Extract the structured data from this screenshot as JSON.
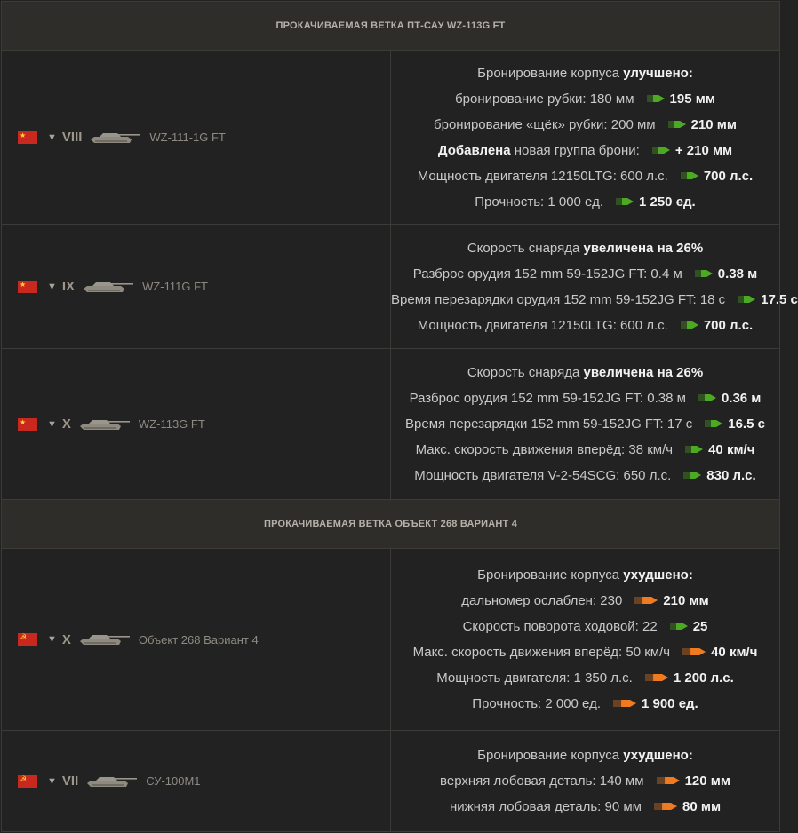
{
  "colors": {
    "background": "#222222",
    "header_background": "#2f2d2a",
    "border": "#3d3b38",
    "text": "#c9c9c9",
    "value_text": "#f2f2f2",
    "buff": "#4caa22",
    "nerf": "#f07a20"
  },
  "sections": [
    {
      "title": "ПРОКАЧИВАЕМАЯ ВЕТКА ПТ-САУ WZ-113G FT",
      "rows": [
        {
          "tier": "VIII",
          "flag": "china-flag-icon",
          "tank_name": "WZ-111-1G FT",
          "lines": [
            {
              "text": "Бронирование корпуса ",
              "bold": "улучшено:"
            },
            {
              "text": "бронирование рубки: 180 мм",
              "dir": "up",
              "new": "195 мм"
            },
            {
              "text": "бронирование «щёк» рубки: 200 мм",
              "dir": "up",
              "new": "210 мм"
            },
            {
              "lead": "Добавлена",
              "text": " новая группа брони:",
              "dir": "up",
              "new": "+ 210 мм"
            },
            {
              "text": "Мощность двигателя 12150LTG: 600 л.с.",
              "dir": "up",
              "new": "700 л.с."
            },
            {
              "text": "Прочность: 1 000 ед.",
              "dir": "up",
              "new": "1 250 ед."
            }
          ]
        },
        {
          "tier": "IX",
          "flag": "china-flag-icon",
          "tank_name": "WZ-111G FT",
          "lines": [
            {
              "text": "Скорость снаряда ",
              "bold": "увеличена на 26%"
            },
            {
              "text": "Разброс орудия 152 mm 59-152JG FT: 0.4 м",
              "dir": "up",
              "new": "0.38 м"
            },
            {
              "text": "Время перезарядки орудия 152 mm 59-152JG FT: 18 с",
              "dir": "up",
              "new": "17.5 с"
            },
            {
              "text": "Мощность двигателя 12150LTG: 600 л.с.",
              "dir": "up",
              "new": "700 л.с."
            }
          ]
        },
        {
          "tier": "X",
          "flag": "china-flag-icon",
          "tank_name": "WZ-113G FT",
          "lines": [
            {
              "text": "Скорость снаряда ",
              "bold": "увеличена на 26%"
            },
            {
              "text": "Разброс орудия 152 mm 59-152JG FT: 0.38 м",
              "dir": "up",
              "new": "0.36 м"
            },
            {
              "text": "Время перезарядки 152 mm 59-152JG FT: 17 с",
              "dir": "up",
              "new": "16.5 с"
            },
            {
              "text": "Макс. скорость движения вперёд: 38 км/ч",
              "dir": "up",
              "new": "40 км/ч"
            },
            {
              "text": "Мощность двигателя V-2-54SCG: 650 л.с.",
              "dir": "up",
              "new": "830 л.с."
            }
          ]
        }
      ]
    },
    {
      "title": "ПРОКАЧИВАЕМАЯ ВЕТКА ОБЪЕКТ 268 ВАРИАНТ 4",
      "rows": [
        {
          "tier": "X",
          "flag": "ussr-flag-icon",
          "tank_name": "Объект 268 Вариант 4",
          "lines": [
            {
              "text": "Бронирование корпуса ",
              "bold": "ухудшено:"
            },
            {
              "text": "дальномер ослаблен: 230",
              "dir": "down",
              "new": "210 мм"
            },
            {
              "text": "Скорость поворота ходовой: 22",
              "dir": "up",
              "new": "25"
            },
            {
              "text": "Макс. скорость движения вперёд: 50 км/ч",
              "dir": "down",
              "new": "40 км/ч"
            },
            {
              "text": "Мощность двигателя: 1 350 л.с.",
              "dir": "down",
              "new": "1 200 л.с."
            },
            {
              "text": "Прочность: 2 000 ед.",
              "dir": "down",
              "new": "1 900 ед."
            }
          ]
        },
        {
          "tier": "VII",
          "flag": "ussr-flag-icon",
          "tank_name": "СУ-100М1",
          "lines": [
            {
              "text": "Бронирование корпуса ",
              "bold": "ухудшено:"
            },
            {
              "text": "верхняя лобовая деталь: 140 мм",
              "dir": "down",
              "new": "120 мм"
            },
            {
              "text": "нижняя лобовая деталь: 90 мм",
              "dir": "down",
              "new": "80 мм"
            }
          ]
        }
      ]
    }
  ]
}
